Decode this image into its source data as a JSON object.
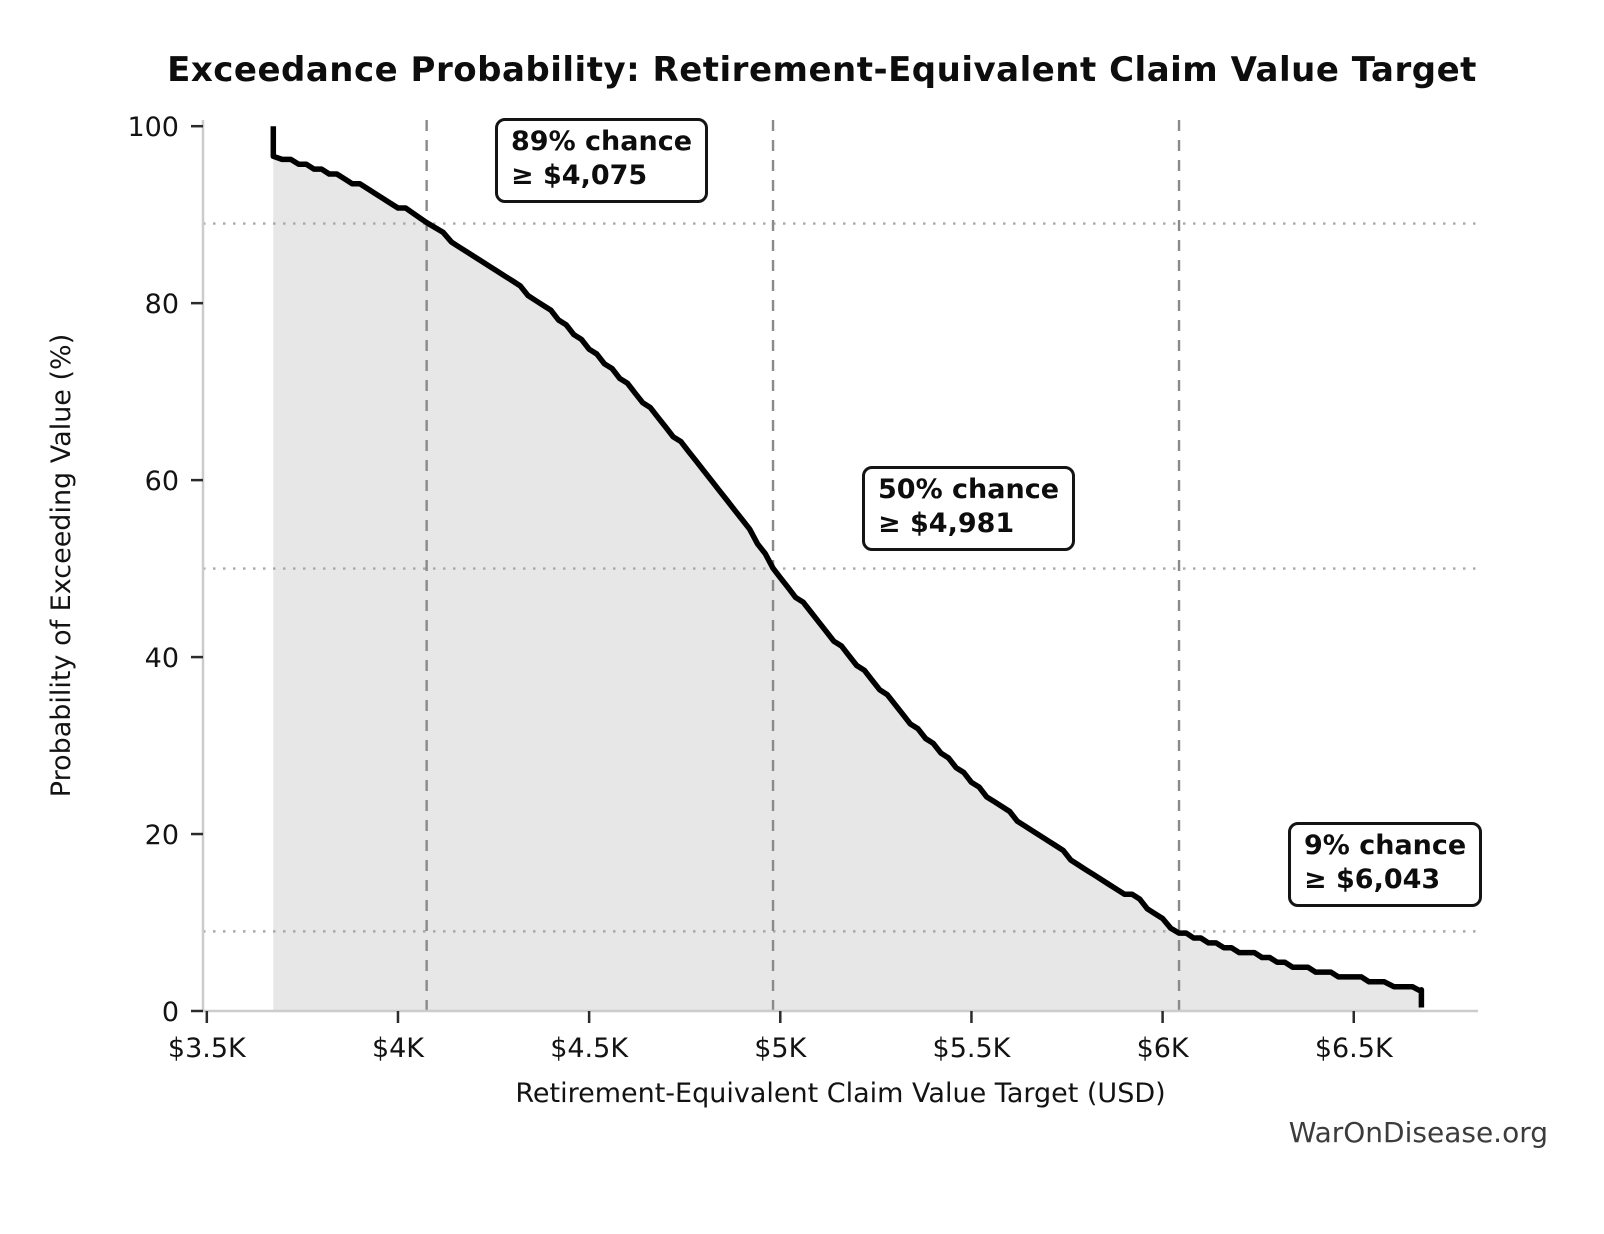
{
  "chart_data": {
    "type": "line",
    "subtype": "exceedance-curve",
    "title": "Exceedance Probability: Retirement-Equivalent Claim Value Target",
    "xlabel": "Retirement-Equivalent Claim Value Target (USD)",
    "ylabel": "Probability of Exceeding Value (%)",
    "xlim": [
      3490,
      6825
    ],
    "ylim": [
      0,
      100.7
    ],
    "grid": "reference-lines-only",
    "x_ticks": [
      {
        "value": 3500,
        "label": "$3.5K"
      },
      {
        "value": 4000,
        "label": "$4K"
      },
      {
        "value": 4500,
        "label": "$4.5K"
      },
      {
        "value": 5000,
        "label": "$5K"
      },
      {
        "value": 5500,
        "label": "$5.5K"
      },
      {
        "value": 6000,
        "label": "$6K"
      },
      {
        "value": 6500,
        "label": "$6.5K"
      }
    ],
    "y_ticks": [
      {
        "value": 0,
        "label": "0"
      },
      {
        "value": 20,
        "label": "20"
      },
      {
        "value": 40,
        "label": "40"
      },
      {
        "value": 60,
        "label": "60"
      },
      {
        "value": 80,
        "label": "80"
      },
      {
        "value": 100,
        "label": "100"
      }
    ],
    "annotations": [
      {
        "line1": "89% chance",
        "line2": "≥ $4,075",
        "probability_pct": 89,
        "value_usd": 4075
      },
      {
        "line1": "50% chance",
        "line2": "≥ $4,981",
        "probability_pct": 50,
        "value_usd": 4981
      },
      {
        "line1": "9% chance",
        "line2": "≥ $6,043",
        "probability_pct": 9,
        "value_usd": 6043
      }
    ],
    "curve_points": [
      [
        3674,
        100.0
      ],
      [
        3674,
        96.6
      ],
      [
        3720,
        96.1
      ],
      [
        3780,
        95.3
      ],
      [
        3840,
        94.4
      ],
      [
        3900,
        93.3
      ],
      [
        3960,
        92.0
      ],
      [
        4020,
        90.5
      ],
      [
        4075,
        89.0
      ],
      [
        4140,
        87.1
      ],
      [
        4200,
        85.5
      ],
      [
        4260,
        83.7
      ],
      [
        4320,
        81.8
      ],
      [
        4380,
        79.7
      ],
      [
        4440,
        77.4
      ],
      [
        4500,
        75.0
      ],
      [
        4560,
        72.5
      ],
      [
        4620,
        69.9
      ],
      [
        4680,
        67.1
      ],
      [
        4740,
        64.2
      ],
      [
        4800,
        61.2
      ],
      [
        4860,
        58.0
      ],
      [
        4920,
        54.5
      ],
      [
        4981,
        50.0
      ],
      [
        5040,
        47.0
      ],
      [
        5100,
        44.0
      ],
      [
        5160,
        41.1
      ],
      [
        5220,
        38.3
      ],
      [
        5280,
        35.5
      ],
      [
        5340,
        32.7
      ],
      [
        5400,
        30.0
      ],
      [
        5460,
        27.5
      ],
      [
        5520,
        25.2
      ],
      [
        5580,
        23.0
      ],
      [
        5640,
        21.0
      ],
      [
        5700,
        19.1
      ],
      [
        5760,
        17.3
      ],
      [
        5820,
        15.6
      ],
      [
        5880,
        14.0
      ],
      [
        5940,
        12.4
      ],
      [
        6000,
        10.2
      ],
      [
        6043,
        9.0
      ],
      [
        6100,
        8.2
      ],
      [
        6160,
        7.4
      ],
      [
        6220,
        6.6
      ],
      [
        6280,
        5.9
      ],
      [
        6340,
        5.2
      ],
      [
        6400,
        4.6
      ],
      [
        6460,
        4.1
      ],
      [
        6520,
        3.6
      ],
      [
        6580,
        3.1
      ],
      [
        6630,
        2.7
      ],
      [
        6677,
        2.4
      ],
      [
        6677,
        0.4
      ]
    ],
    "fill_under_curve": true,
    "colors": {
      "curve": "#000000",
      "fill": "#e7e7e7",
      "dashed_vline": "#8a8a8a",
      "dotted_hline": "#a8a8a8",
      "spine": "#cccccc",
      "tick": "#2b2b2b",
      "text": "#131313",
      "watermark": "#3c3c3c"
    },
    "watermark": "WarOnDisease.org"
  }
}
